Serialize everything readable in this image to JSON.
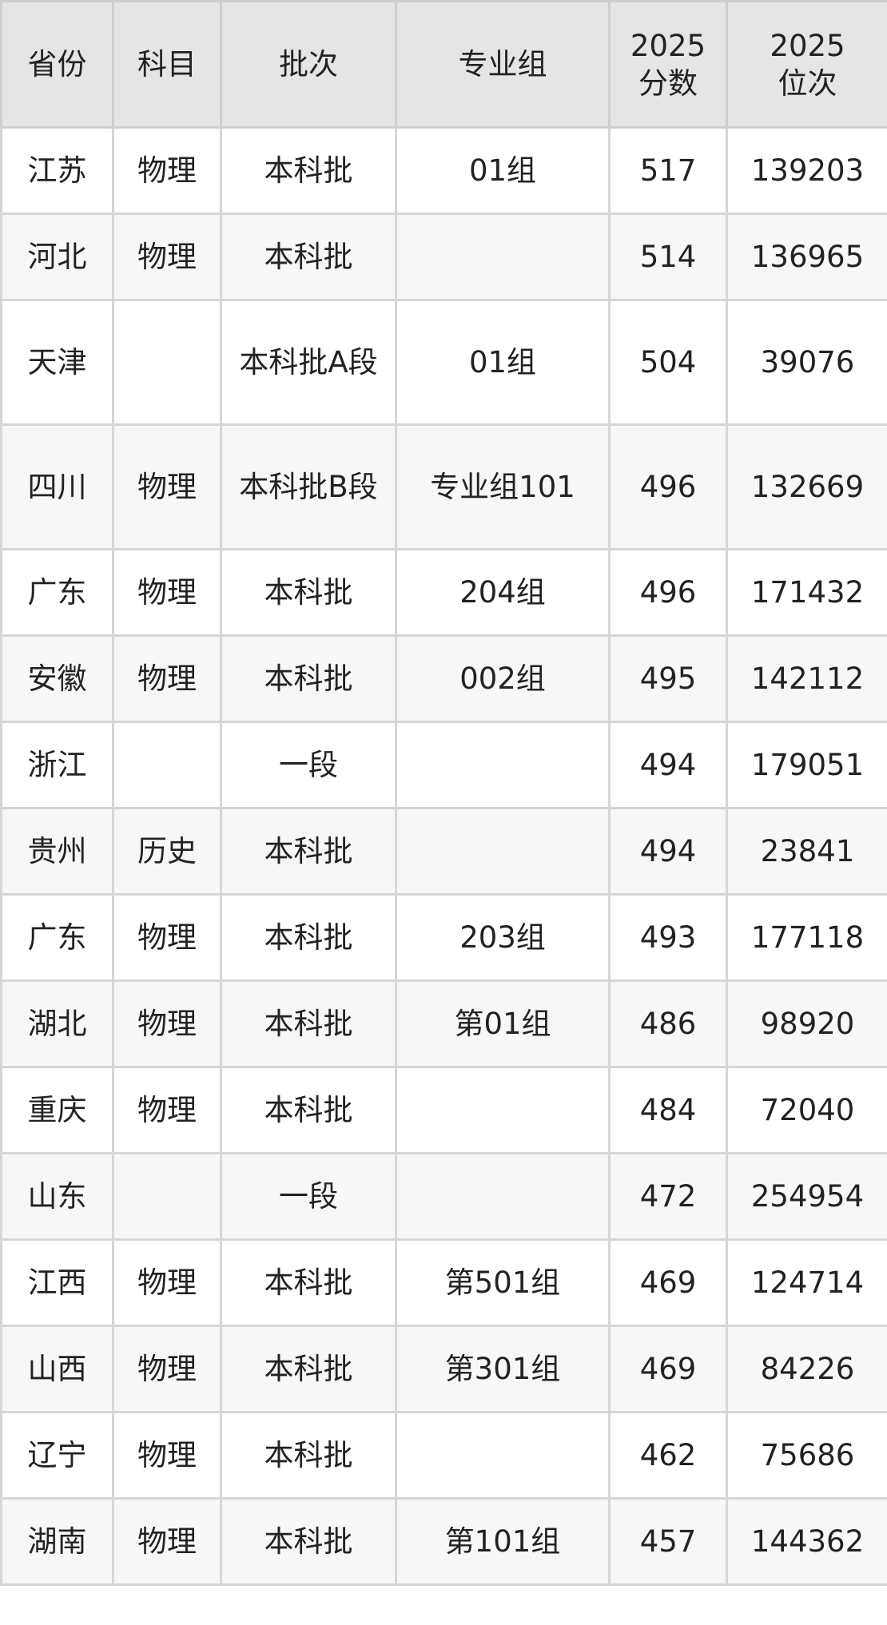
{
  "headers": [
    "省份",
    "科目",
    "批次",
    "专业组",
    "2025\n分数",
    "2025\n位次"
  ],
  "rows": [
    [
      "江苏",
      "物理",
      "本科批",
      "01组",
      "517",
      "139203"
    ],
    [
      "河北",
      "物理",
      "本科批",
      "",
      "514",
      "136965"
    ],
    [
      "天津",
      "",
      "本科批A段",
      "01组",
      "504",
      "39076"
    ],
    [
      "四川",
      "物理",
      "本科批B段",
      "专业组101",
      "496",
      "132669"
    ],
    [
      "广东",
      "物理",
      "本科批",
      "204组",
      "496",
      "171432"
    ],
    [
      "安徽",
      "物理",
      "本科批",
      "002组",
      "495",
      "142112"
    ],
    [
      "浙江",
      "",
      "一段",
      "",
      "494",
      "179051"
    ],
    [
      "贵州",
      "历史",
      "本科批",
      "",
      "494",
      "23841"
    ],
    [
      "广东",
      "物理",
      "本科批",
      "203组",
      "493",
      "177118"
    ],
    [
      "湖北",
      "物理",
      "本科批",
      "第01组",
      "486",
      "98920"
    ],
    [
      "重庆",
      "物理",
      "本科批",
      "",
      "484",
      "72040"
    ],
    [
      "山东",
      "",
      "一段",
      "",
      "472",
      "254954"
    ],
    [
      "江西",
      "物理",
      "本科批",
      "第501组",
      "469",
      "124714"
    ],
    [
      "山西",
      "物理",
      "本科批",
      "第301组",
      "469",
      "84226"
    ],
    [
      "辽宁",
      "物理",
      "本科批",
      "",
      "462",
      "75686"
    ],
    [
      "湖南",
      "物理",
      "本科批",
      "第101组",
      "457",
      "144362"
    ]
  ]
}
